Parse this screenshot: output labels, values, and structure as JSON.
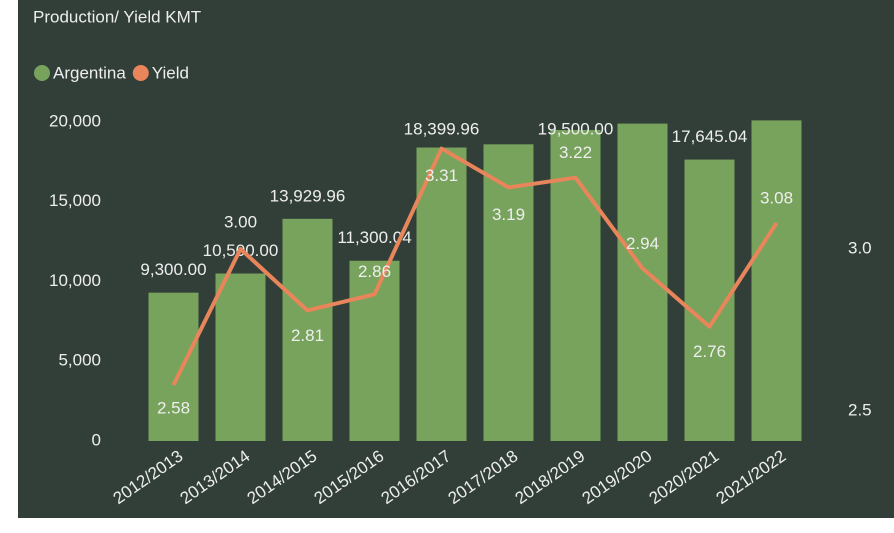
{
  "chart_data": {
    "type": "bar-line",
    "title": "Production/ Yield KMT",
    "categories": [
      "2012/2013",
      "2013/2014",
      "2014/2015",
      "2015/2016",
      "2016/2017",
      "2017/2018",
      "2018/2019",
      "2019/2020",
      "2020/2021",
      "2021/2022"
    ],
    "series": [
      {
        "name": "Argentina",
        "type": "bar",
        "color": "#78a35c",
        "values": [
          9300,
          10500,
          13929.96,
          11300.04,
          18399.96,
          18600,
          19500,
          19900,
          17645.04,
          20100
        ],
        "value_labels": [
          "9,300.00",
          "10,500.00",
          "13,929.96",
          "11,300.04",
          "18,399.96",
          null,
          "19,500.00",
          null,
          "17,645.04",
          null
        ]
      },
      {
        "name": "Yield",
        "type": "line",
        "axis": "y2",
        "color": "#e8855a",
        "values": [
          2.58,
          3.0,
          2.81,
          2.86,
          3.31,
          3.19,
          3.22,
          2.94,
          2.76,
          3.08
        ],
        "value_labels": [
          "2.58",
          "3.00",
          "2.81",
          "2.86",
          "3.31",
          "3.19",
          "3.22",
          "2.94",
          "2.76",
          "3.08"
        ]
      }
    ],
    "ylim": [
      0,
      20000
    ],
    "yticks": [
      0,
      {
        "value": 5000,
        "label": "5,000"
      },
      {
        "value": 10000,
        "label": "10,000"
      },
      {
        "value": 15000,
        "label": "15,000"
      },
      {
        "value": 20000,
        "label": "20,000"
      }
    ],
    "y2lim": [
      2.407,
      3.392
    ],
    "y2ticks": [
      {
        "value": 2.5,
        "label": "2.5"
      },
      {
        "value": 3,
        "label": "3.0"
      }
    ],
    "legend": "top-left",
    "grid": false
  }
}
